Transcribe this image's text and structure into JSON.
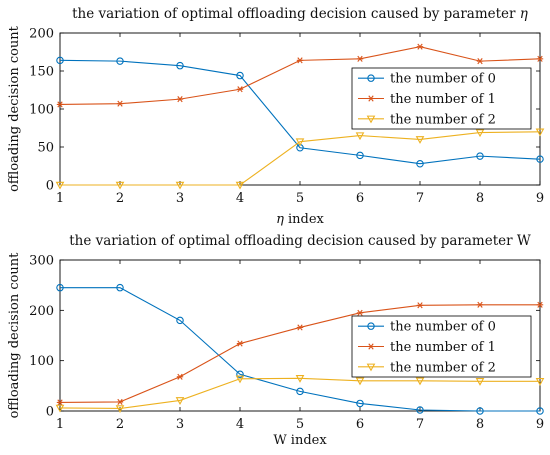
{
  "chart_data": [
    {
      "type": "line",
      "title": "the variation of optimal offloading decision caused by parameter",
      "title_symbol": "η",
      "xlabel_symbol": "η",
      "xlabel": "index",
      "ylabel": "offloading decision count",
      "x": [
        1,
        2,
        3,
        4,
        5,
        6,
        7,
        8,
        9
      ],
      "xlim": [
        1,
        9
      ],
      "ylim": [
        0,
        200
      ],
      "xticks": [
        "1",
        "2",
        "3",
        "4",
        "5",
        "6",
        "7",
        "8",
        "9"
      ],
      "yticks": [
        "0",
        "50",
        "100",
        "150",
        "200"
      ],
      "grid": false,
      "legend_position": "center-right",
      "series": [
        {
          "name": "the number of 0",
          "color": "#0072BD",
          "marker": "circle",
          "values": [
            164,
            163,
            157,
            144,
            49,
            39,
            28,
            38,
            34
          ]
        },
        {
          "name": "the number of 1",
          "color": "#D95319",
          "marker": "asterisk",
          "values": [
            106,
            107,
            113,
            126,
            164,
            166,
            182,
            163,
            166
          ]
        },
        {
          "name": "the number of 2",
          "color": "#EDB120",
          "marker": "triangle-down",
          "values": [
            0,
            0,
            0,
            0,
            57,
            65,
            60,
            69,
            70
          ]
        }
      ]
    },
    {
      "type": "line",
      "title": "the variation of optimal offloading decision caused by parameter W",
      "title_symbol": "",
      "xlabel_symbol": "",
      "xlabel": "W index",
      "ylabel": "offloading decision count",
      "x": [
        1,
        2,
        3,
        4,
        5,
        6,
        7,
        8,
        9
      ],
      "xlim": [
        1,
        9
      ],
      "ylim": [
        0,
        300
      ],
      "xticks": [
        "1",
        "2",
        "3",
        "4",
        "5",
        "6",
        "7",
        "8",
        "9"
      ],
      "yticks": [
        "0",
        "100",
        "200",
        "300"
      ],
      "grid": false,
      "legend_position": "bottom-right",
      "series": [
        {
          "name": "the number of 0",
          "color": "#0072BD",
          "marker": "circle",
          "values": [
            245,
            245,
            180,
            73,
            39,
            15,
            2,
            0,
            0
          ]
        },
        {
          "name": "the number of 1",
          "color": "#D95319",
          "marker": "asterisk",
          "values": [
            17,
            18,
            68,
            134,
            166,
            195,
            210,
            211,
            211
          ]
        },
        {
          "name": "the number of 2",
          "color": "#EDB120",
          "marker": "triangle-down",
          "values": [
            6,
            5,
            21,
            64,
            65,
            60,
            60,
            59,
            59
          ]
        }
      ]
    }
  ]
}
